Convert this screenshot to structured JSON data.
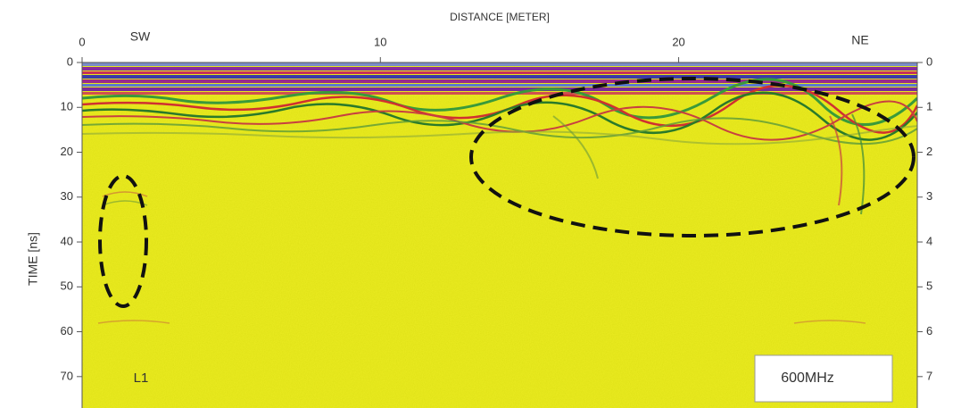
{
  "chart_data": {
    "type": "radargram",
    "title": "DISTANCE [METER]",
    "y_label": "TIME [ns]",
    "xlim": [
      0,
      28
    ],
    "xticks": [
      0,
      10,
      20
    ],
    "ylim": [
      0,
      77
    ],
    "yticks": [
      0,
      10,
      20,
      30,
      40,
      50,
      60,
      70
    ],
    "y2lim": [
      0,
      7.7
    ],
    "y2ticks": [
      0,
      1,
      2,
      3,
      4,
      5,
      6,
      7
    ],
    "annotations": [
      "SW",
      "NE",
      "L1",
      "600MHz"
    ]
  }
}
